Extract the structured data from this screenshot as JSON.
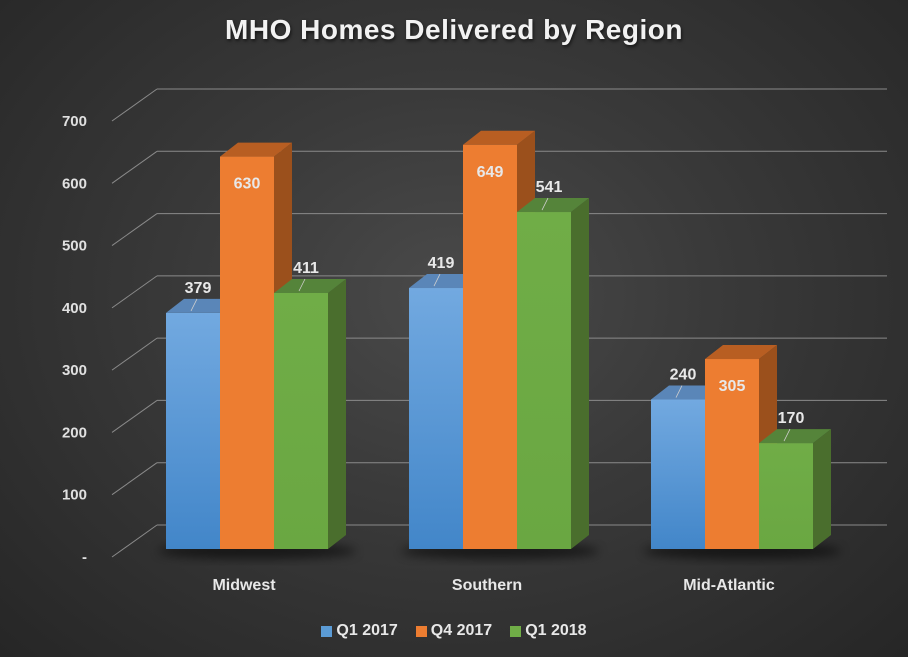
{
  "chart_data": {
    "type": "bar",
    "title": "MHO Homes Delivered by Region",
    "categories": [
      "Midwest",
      "Southern",
      "Mid-Atlantic"
    ],
    "series": [
      {
        "name": "Q1 2017",
        "color": "#5b9bd5",
        "values": [
          379,
          419,
          240
        ]
      },
      {
        "name": "Q4 2017",
        "color": "#ed7d31",
        "values": [
          630,
          649,
          305
        ]
      },
      {
        "name": "Q1 2018",
        "color": "#70ad47",
        "values": [
          411,
          541,
          170
        ]
      }
    ],
    "xlabel": "",
    "ylabel": "",
    "ylim": [
      0,
      700
    ],
    "yticks": [
      "-",
      "100",
      "200",
      "300",
      "400",
      "500",
      "600",
      "700"
    ],
    "grid": true,
    "style": "3d-clustered-column",
    "legend_position": "bottom"
  },
  "title": "MHO Homes Delivered by Region",
  "legend": [
    {
      "label": "Q1 2017",
      "color": "#5b9bd5"
    },
    {
      "label": "Q4 2017",
      "color": "#ed7d31"
    },
    {
      "label": "Q1 2018",
      "color": "#70ad47"
    }
  ]
}
